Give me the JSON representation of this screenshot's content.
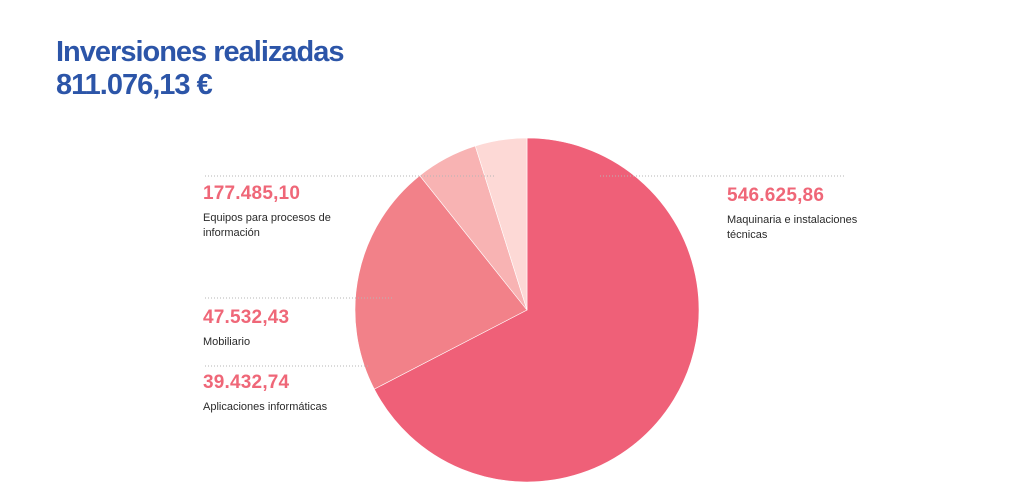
{
  "header": {
    "title": "Inversiones realizadas",
    "total": "811.076,13 €"
  },
  "colors": {
    "title": "#2c55a8",
    "value_text": "#ef6778",
    "slices": [
      "#ef6078",
      "#f28189",
      "#f8b3b3",
      "#fdd9d6"
    ]
  },
  "chart_data": {
    "type": "pie",
    "title": "Inversiones realizadas",
    "total": 811076.13,
    "slices": [
      {
        "label": "Maquinaria e instalaciones técnicas",
        "value": 546625.86,
        "display": "546.625,86"
      },
      {
        "label": "Equipos para procesos de información",
        "value": 177485.1,
        "display": "177.485,10"
      },
      {
        "label": "Mobiliario",
        "value": 47532.43,
        "display": "47.532,43"
      },
      {
        "label": "Aplicaciones informáticas",
        "value": 39432.74,
        "display": "39.432,74"
      }
    ]
  },
  "labels": {
    "maquinaria": {
      "value": "546.625,86",
      "desc": "Maquinaria e instalaciones técnicas"
    },
    "equipos": {
      "value": "177.485,10",
      "desc": "Equipos para procesos de información"
    },
    "mobiliario": {
      "value": "47.532,43",
      "desc": "Mobiliario"
    },
    "aplicaciones": {
      "value": "39.432,74",
      "desc": "Aplicaciones informáticas"
    }
  }
}
